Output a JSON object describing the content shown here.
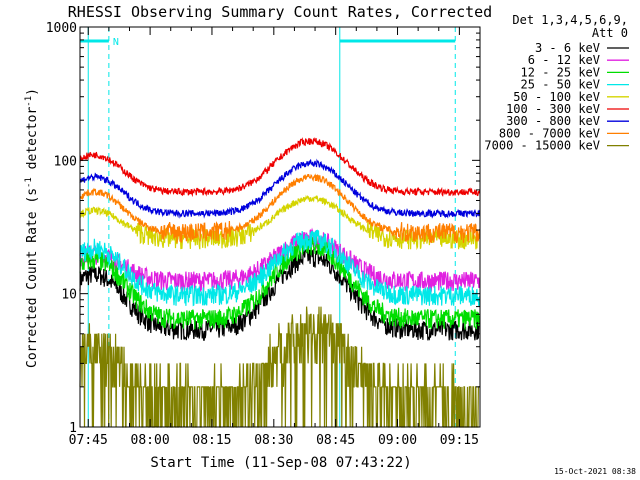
{
  "chart_data": {
    "type": "line",
    "title": "RHESSI Observing Summary Count Rates, Corrected",
    "xlabel": "Start Time (11-Sep-08 07:43:22)",
    "ylabel_main": "Corrected Count Rate (s",
    "ylabel_sup1": "-1",
    "ylabel_mid": " detector",
    "ylabel_sup2": "-1",
    "ylabel_end": ")",
    "y_scale": "log",
    "ylim": [
      1,
      1000
    ],
    "xlim_minutes": [
      -2,
      95
    ],
    "x_ticks": [
      "07:45",
      "08:00",
      "08:15",
      "08:30",
      "08:45",
      "09:00",
      "09:15"
    ],
    "x_tick_minutes": [
      0,
      15,
      30,
      45,
      60,
      75,
      90
    ],
    "y_tick_labels": [
      "1",
      "10",
      "100",
      "1000"
    ],
    "y_tick_values": [
      1,
      10,
      100,
      1000
    ],
    "legend_title_1": "Det 1,3,4,5,6,9,",
    "legend_title_2": "Att 0",
    "legend_position": "top-right, outside plot",
    "footer_date": "15-Oct-2021 08:38",
    "annotation_n": "N",
    "night_intervals_minutes": [
      [
        -2,
        5
      ],
      [
        61,
        89
      ]
    ],
    "dashed_lines_minutes": [
      5,
      89
    ],
    "solid_lines_minutes": [
      0,
      61
    ],
    "series": [
      {
        "name": "3 - 6 keV",
        "color": "#000000",
        "base": 5.4,
        "peak1": 14,
        "peak2": 19
      },
      {
        "name": "6 - 12 keV",
        "color": "#e020e0",
        "base": 12.5,
        "peak1": 20,
        "peak2": 26
      },
      {
        "name": "12 - 25 keV",
        "color": "#00dd00",
        "base": 6.5,
        "peak1": 18,
        "peak2": 23
      },
      {
        "name": "25 - 50 keV",
        "color": "#00e8e8",
        "base": 9.8,
        "peak1": 22,
        "peak2": 26
      },
      {
        "name": "50 - 100 keV",
        "color": "#d4d400",
        "base": 26,
        "peak1": 42,
        "peak2": 52
      },
      {
        "name": "100 - 300 keV",
        "color": "#ee0000",
        "base": 58,
        "peak1": 110,
        "peak2": 140
      },
      {
        "name": "300 - 800 keV",
        "color": "#0000dd",
        "base": 40,
        "peak1": 75,
        "peak2": 95
      },
      {
        "name": "800 - 7000 keV",
        "color": "#ff7f00",
        "base": 29,
        "peak1": 58,
        "peak2": 75
      },
      {
        "name": "7000 - 15000 keV",
        "color": "#808000",
        "base": 1.8,
        "peak1": 4,
        "peak2": 5.5
      }
    ]
  }
}
